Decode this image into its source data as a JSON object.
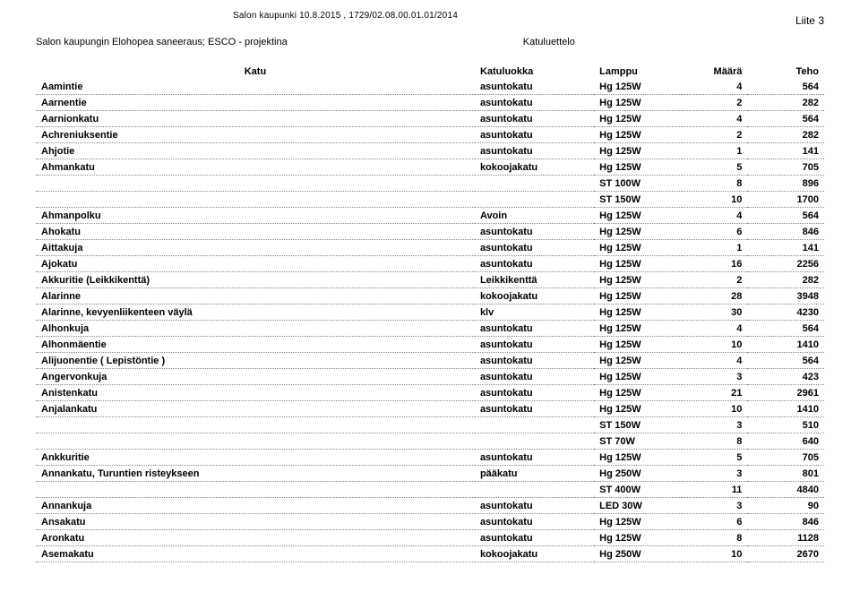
{
  "header": {
    "top_line": "Salon kaupunki 10.8.2015 , 1729/02.08.00.01.01/2014",
    "liite": "Liite 3",
    "subtitle_left": "Salon kaupungin Elohopea saneeraus; ESCO - projektina",
    "subtitle_right": "Katuluettelo"
  },
  "columns": {
    "katu": "Katu",
    "luokka": "Katuluokka",
    "lamppu": "Lamppu",
    "maara": "Määrä",
    "teho": "Teho"
  },
  "rows": [
    {
      "katu": "Aamintie",
      "luokka": "asuntokatu",
      "lamppu": "Hg 125W",
      "maara": "4",
      "teho": "564"
    },
    {
      "katu": "Aarnentie",
      "luokka": "asuntokatu",
      "lamppu": "Hg 125W",
      "maara": "2",
      "teho": "282"
    },
    {
      "katu": "Aarnionkatu",
      "luokka": "asuntokatu",
      "lamppu": "Hg 125W",
      "maara": "4",
      "teho": "564"
    },
    {
      "katu": "Achreniuksentie",
      "luokka": "asuntokatu",
      "lamppu": "Hg 125W",
      "maara": "2",
      "teho": "282"
    },
    {
      "katu": "Ahjotie",
      "luokka": "asuntokatu",
      "lamppu": "Hg 125W",
      "maara": "1",
      "teho": "141"
    },
    {
      "katu": "Ahmankatu",
      "luokka": "kokoojakatu",
      "lamppu": "Hg 125W",
      "maara": "5",
      "teho": "705"
    },
    {
      "katu": "",
      "luokka": "",
      "lamppu": "ST 100W",
      "maara": "8",
      "teho": "896"
    },
    {
      "katu": "",
      "luokka": "",
      "lamppu": "ST 150W",
      "maara": "10",
      "teho": "1700"
    },
    {
      "katu": "Ahmanpolku",
      "luokka": "Avoin",
      "lamppu": "Hg 125W",
      "maara": "4",
      "teho": "564"
    },
    {
      "katu": "Ahokatu",
      "luokka": "asuntokatu",
      "lamppu": "Hg 125W",
      "maara": "6",
      "teho": "846"
    },
    {
      "katu": "Aittakuja",
      "luokka": "asuntokatu",
      "lamppu": "Hg 125W",
      "maara": "1",
      "teho": "141"
    },
    {
      "katu": "Ajokatu",
      "luokka": "asuntokatu",
      "lamppu": "Hg 125W",
      "maara": "16",
      "teho": "2256"
    },
    {
      "katu": "Akkuritie (Leikkikenttä)",
      "luokka": "Leikkikenttä",
      "lamppu": "Hg 125W",
      "maara": "2",
      "teho": "282"
    },
    {
      "katu": "Alarinne",
      "luokka": "kokoojakatu",
      "lamppu": "Hg 125W",
      "maara": "28",
      "teho": "3948"
    },
    {
      "katu": "Alarinne, kevyenliikenteen väylä",
      "luokka": "klv",
      "lamppu": "Hg 125W",
      "maara": "30",
      "teho": "4230"
    },
    {
      "katu": "Alhonkuja",
      "luokka": "asuntokatu",
      "lamppu": "Hg 125W",
      "maara": "4",
      "teho": "564"
    },
    {
      "katu": "Alhonmäentie",
      "luokka": "asuntokatu",
      "lamppu": "Hg 125W",
      "maara": "10",
      "teho": "1410"
    },
    {
      "katu": "Alijuonentie ( Lepistöntie )",
      "luokka": "asuntokatu",
      "lamppu": "Hg 125W",
      "maara": "4",
      "teho": "564"
    },
    {
      "katu": "Angervonkuja",
      "luokka": "asuntokatu",
      "lamppu": "Hg 125W",
      "maara": "3",
      "teho": "423"
    },
    {
      "katu": "Anistenkatu",
      "luokka": "asuntokatu",
      "lamppu": "Hg 125W",
      "maara": "21",
      "teho": "2961"
    },
    {
      "katu": "Anjalankatu",
      "luokka": "asuntokatu",
      "lamppu": "Hg 125W",
      "maara": "10",
      "teho": "1410"
    },
    {
      "katu": "",
      "luokka": "",
      "lamppu": "ST 150W",
      "maara": "3",
      "teho": "510"
    },
    {
      "katu": "",
      "luokka": "",
      "lamppu": "ST 70W",
      "maara": "8",
      "teho": "640"
    },
    {
      "katu": "Ankkuritie",
      "luokka": "asuntokatu",
      "lamppu": "Hg 125W",
      "maara": "5",
      "teho": "705"
    },
    {
      "katu": "Annankatu, Turuntien risteykseen",
      "luokka": "pääkatu",
      "lamppu": "Hg 250W",
      "maara": "3",
      "teho": "801"
    },
    {
      "katu": "",
      "luokka": "",
      "lamppu": "ST 400W",
      "maara": "11",
      "teho": "4840"
    },
    {
      "katu": "Annankuja",
      "luokka": "asuntokatu",
      "lamppu": "LED 30W",
      "maara": "3",
      "teho": "90"
    },
    {
      "katu": "Ansakatu",
      "luokka": "asuntokatu",
      "lamppu": "Hg 125W",
      "maara": "6",
      "teho": "846"
    },
    {
      "katu": "Aronkatu",
      "luokka": "asuntokatu",
      "lamppu": "Hg 125W",
      "maara": "8",
      "teho": "1128"
    },
    {
      "katu": "Asemakatu",
      "luokka": "kokoojakatu",
      "lamppu": "Hg 250W",
      "maara": "10",
      "teho": "2670"
    }
  ]
}
